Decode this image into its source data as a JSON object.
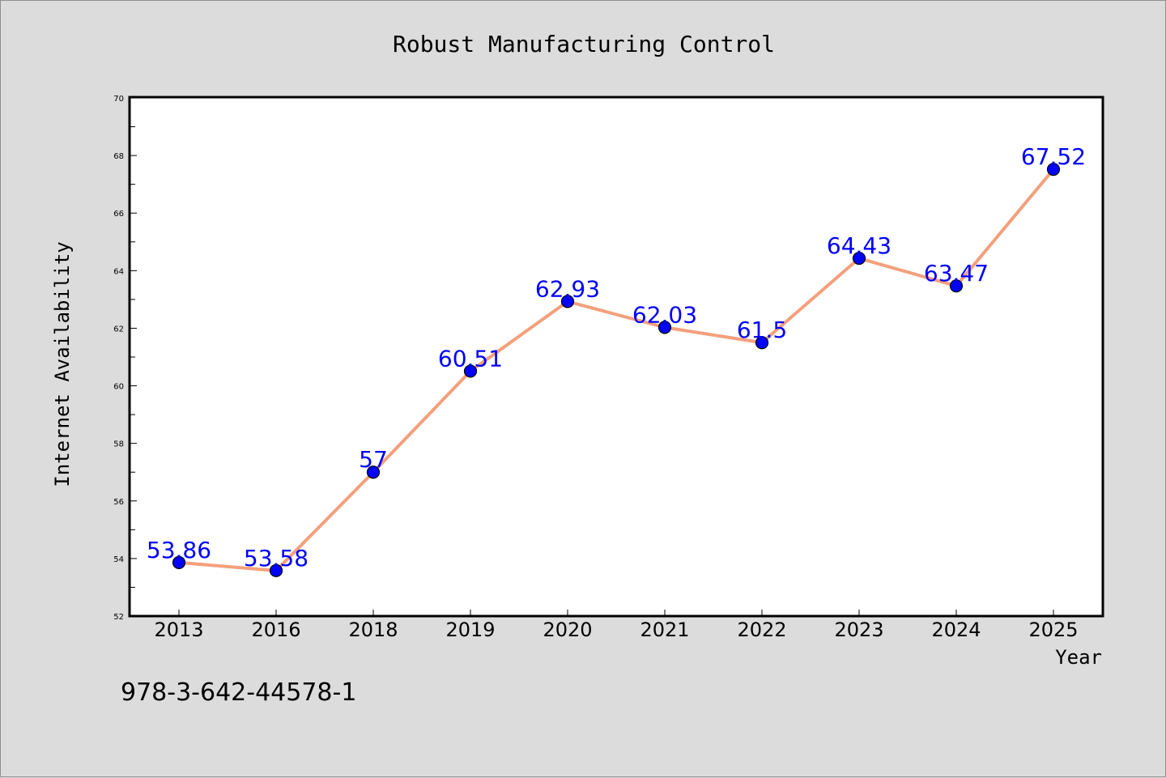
{
  "chart_data": {
    "type": "line",
    "title": "Robust Manufacturing Control",
    "xlabel": "Year",
    "ylabel": "Internet Availability",
    "categories": [
      "2013",
      "2016",
      "2018",
      "2019",
      "2020",
      "2021",
      "2022",
      "2023",
      "2024",
      "2025"
    ],
    "series": [
      {
        "values": [
          53.86,
          53.58,
          57,
          60.51,
          62.93,
          62.03,
          61.5,
          64.43,
          63.47,
          67.52
        ],
        "data_labels": [
          "53.86",
          "53.58",
          "57",
          "60.51",
          "62.93",
          "62.03",
          "61.5",
          "64.43",
          "63.47",
          "67.52"
        ],
        "line_color": "#f4a07c",
        "marker_color": "#0000ff"
      }
    ],
    "ylim": [
      52,
      70
    ],
    "yticks": [
      "52",
      "54",
      "56",
      "58",
      "60",
      "62",
      "64",
      "66",
      "68",
      "70"
    ],
    "grid": false,
    "legend": "none",
    "background_color": "#dcdcdc",
    "plot_background": "#ffffff",
    "label_color": "#0000ff"
  },
  "footer": {
    "isbn": "978-3-642-44578-1"
  }
}
